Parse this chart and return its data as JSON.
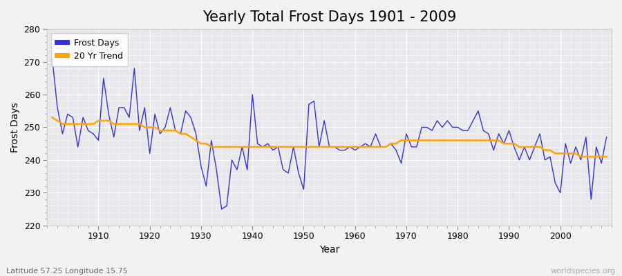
{
  "title": "Yearly Total Frost Days 1901 - 2009",
  "xlabel": "Year",
  "ylabel": "Frost Days",
  "lat_lon_label": "Latitude 57.25 Longitude 15.75",
  "watermark": "worldspecies.org",
  "years": [
    1901,
    1902,
    1903,
    1904,
    1905,
    1906,
    1907,
    1908,
    1909,
    1910,
    1911,
    1912,
    1913,
    1914,
    1915,
    1916,
    1917,
    1918,
    1919,
    1920,
    1921,
    1922,
    1923,
    1924,
    1925,
    1926,
    1927,
    1928,
    1929,
    1930,
    1931,
    1932,
    1933,
    1934,
    1935,
    1936,
    1937,
    1938,
    1939,
    1940,
    1941,
    1942,
    1943,
    1944,
    1945,
    1946,
    1947,
    1948,
    1949,
    1950,
    1951,
    1952,
    1953,
    1954,
    1955,
    1956,
    1957,
    1958,
    1959,
    1960,
    1961,
    1962,
    1963,
    1964,
    1965,
    1966,
    1967,
    1968,
    1969,
    1970,
    1971,
    1972,
    1973,
    1974,
    1975,
    1976,
    1977,
    1978,
    1979,
    1980,
    1981,
    1982,
    1983,
    1984,
    1985,
    1986,
    1987,
    1988,
    1989,
    1990,
    1991,
    1992,
    1993,
    1994,
    1995,
    1996,
    1997,
    1998,
    1999,
    2000,
    2001,
    2002,
    2003,
    2004,
    2005,
    2006,
    2007,
    2008,
    2009
  ],
  "frost_days": [
    271,
    256,
    248,
    254,
    253,
    244,
    253,
    249,
    248,
    246,
    265,
    254,
    247,
    256,
    256,
    253,
    268,
    249,
    256,
    242,
    254,
    248,
    250,
    256,
    249,
    248,
    255,
    253,
    248,
    238,
    232,
    246,
    237,
    225,
    226,
    240,
    237,
    244,
    237,
    260,
    245,
    244,
    245,
    243,
    244,
    237,
    236,
    244,
    236,
    231,
    257,
    258,
    244,
    252,
    244,
    244,
    243,
    243,
    244,
    243,
    244,
    245,
    244,
    248,
    244,
    244,
    245,
    243,
    239,
    248,
    244,
    244,
    250,
    250,
    249,
    252,
    250,
    252,
    250,
    250,
    249,
    249,
    252,
    255,
    249,
    248,
    243,
    248,
    245,
    249,
    244,
    240,
    244,
    240,
    244,
    248,
    240,
    241,
    233,
    230,
    245,
    239,
    244,
    240,
    247,
    228,
    244,
    239,
    247
  ],
  "trend_values": [
    253,
    252,
    251,
    251,
    251,
    251,
    251,
    251,
    251,
    252,
    252,
    252,
    251,
    251,
    251,
    251,
    251,
    251,
    250,
    250,
    250,
    249,
    249,
    249,
    249,
    248,
    248,
    247,
    246,
    245,
    245,
    244,
    244,
    244,
    244,
    244,
    244,
    244,
    244,
    244,
    244,
    244,
    244,
    244,
    244,
    244,
    244,
    244,
    244,
    244,
    244,
    244,
    244,
    244,
    244,
    244,
    244,
    244,
    244,
    244,
    244,
    244,
    244,
    244,
    244,
    244,
    245,
    245,
    246,
    246,
    246,
    246,
    246,
    246,
    246,
    246,
    246,
    246,
    246,
    246,
    246,
    246,
    246,
    246,
    246,
    246,
    246,
    246,
    245,
    245,
    245,
    244,
    244,
    244,
    244,
    244,
    243,
    243,
    242,
    242,
    242,
    242,
    242,
    241,
    241,
    241,
    241,
    241,
    241
  ],
  "line_color": "#3333cc",
  "trend_color": "#FFA500",
  "plot_bg_color": "#e8e8ec",
  "fig_bg_color": "#f2f2f2",
  "grid_color": "#ffffff",
  "ylim": [
    220,
    280
  ],
  "yticks": [
    220,
    230,
    240,
    250,
    260,
    270,
    280
  ],
  "xlim": [
    1900,
    2010
  ],
  "xticks": [
    1910,
    1920,
    1930,
    1940,
    1950,
    1960,
    1970,
    1980,
    1990,
    2000
  ],
  "legend_frost": "Frost Days",
  "legend_trend": "20 Yr Trend",
  "title_fontsize": 15,
  "axis_fontsize": 10,
  "tick_fontsize": 9,
  "legend_fontsize": 9
}
